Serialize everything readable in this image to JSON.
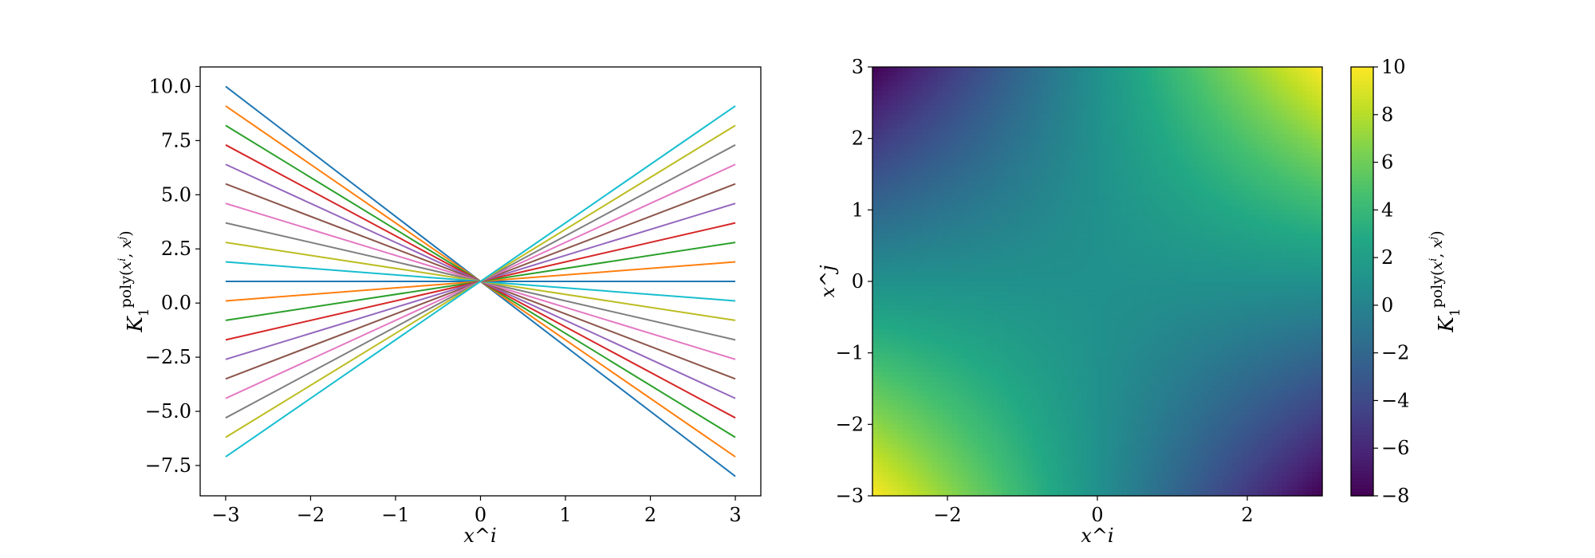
{
  "chart_data": [
    {
      "type": "line",
      "xlabel": "x^i",
      "ylabel": "K_1^poly(x^i, x^j)",
      "xlim": [
        -3.3,
        3.3
      ],
      "ylim": [
        -8.9,
        10.9
      ],
      "xticks": [
        -3,
        -2,
        -1,
        0,
        1,
        2,
        3
      ],
      "xtick_labels": [
        "−3",
        "−2",
        "−1",
        "0",
        "1",
        "2",
        "3"
      ],
      "yticks": [
        -7.5,
        -5,
        -2.5,
        0,
        2.5,
        5,
        7.5,
        10
      ],
      "ytick_labels": [
        "−7.5",
        "−5.0",
        "−2.5",
        "0.0",
        "2.5",
        "5.0",
        "7.5",
        "10.0"
      ],
      "grid": false,
      "x": [
        -3,
        3
      ],
      "series": [
        {
          "values": [
            10.0,
            -8.0
          ],
          "color": "#1f77b4"
        },
        {
          "values": [
            9.1,
            -7.1
          ],
          "color": "#ff7f0e"
        },
        {
          "values": [
            8.2,
            -6.2
          ],
          "color": "#2ca02c"
        },
        {
          "values": [
            7.3,
            -5.3
          ],
          "color": "#d62728"
        },
        {
          "values": [
            6.4,
            -4.4
          ],
          "color": "#9467bd"
        },
        {
          "values": [
            5.5,
            -3.5
          ],
          "color": "#8c564b"
        },
        {
          "values": [
            4.6,
            -2.6
          ],
          "color": "#e377c2"
        },
        {
          "values": [
            3.7,
            -1.7
          ],
          "color": "#7f7f7f"
        },
        {
          "values": [
            2.8,
            -0.8
          ],
          "color": "#bcbd22"
        },
        {
          "values": [
            1.9,
            0.1
          ],
          "color": "#17becf"
        },
        {
          "values": [
            1.0,
            1.0
          ],
          "color": "#1f77b4"
        },
        {
          "values": [
            0.1,
            1.9
          ],
          "color": "#ff7f0e"
        },
        {
          "values": [
            -0.8,
            2.8
          ],
          "color": "#2ca02c"
        },
        {
          "values": [
            -1.7,
            3.7
          ],
          "color": "#d62728"
        },
        {
          "values": [
            -2.6,
            4.6
          ],
          "color": "#9467bd"
        },
        {
          "values": [
            -3.5,
            5.5
          ],
          "color": "#8c564b"
        },
        {
          "values": [
            -4.4,
            6.4
          ],
          "color": "#e377c2"
        },
        {
          "values": [
            -5.3,
            7.3
          ],
          "color": "#7f7f7f"
        },
        {
          "values": [
            -6.2,
            8.2
          ],
          "color": "#bcbd22"
        },
        {
          "values": [
            -7.1,
            9.1
          ],
          "color": "#17becf"
        }
      ]
    },
    {
      "type": "heatmap",
      "xlabel": "x^i",
      "ylabel": "x^j",
      "colorbar_label": "K_1^poly(x^i, x^j)",
      "colormap": "viridis",
      "xlim": [
        -3,
        3
      ],
      "ylim": [
        -3,
        3
      ],
      "clim": [
        -8,
        10
      ],
      "xticks": [
        -2,
        0,
        2
      ],
      "xtick_labels": [
        "−2",
        "0",
        "2"
      ],
      "yticks": [
        -3,
        -2,
        -1,
        0,
        1,
        2,
        3
      ],
      "ytick_labels": [
        "−3",
        "−2",
        "−1",
        "0",
        "1",
        "2",
        "3"
      ],
      "cbar_ticks": [
        -8,
        -6,
        -4,
        -2,
        0,
        2,
        4,
        6,
        8,
        10
      ],
      "cbar_tick_labels": [
        "−8",
        "−6",
        "−4",
        "−2",
        "0",
        "2",
        "4",
        "6",
        "8",
        "10"
      ],
      "grid_x": [
        -3,
        -2,
        -1,
        0,
        1,
        2,
        3
      ],
      "grid_y": [
        -3,
        -2,
        -1,
        0,
        1,
        2,
        3
      ],
      "z": [
        [
          10,
          7,
          4,
          1,
          -2,
          -5,
          -8
        ],
        [
          7,
          5,
          3,
          1,
          -1,
          -3,
          -5
        ],
        [
          4,
          3,
          2,
          1,
          0,
          -1,
          -2
        ],
        [
          1,
          1,
          1,
          1,
          1,
          1,
          1
        ],
        [
          -2,
          -1,
          0,
          1,
          2,
          3,
          4
        ],
        [
          -5,
          -3,
          -1,
          1,
          3,
          5,
          7
        ],
        [
          -8,
          -5,
          -2,
          1,
          4,
          7,
          10
        ]
      ]
    }
  ]
}
